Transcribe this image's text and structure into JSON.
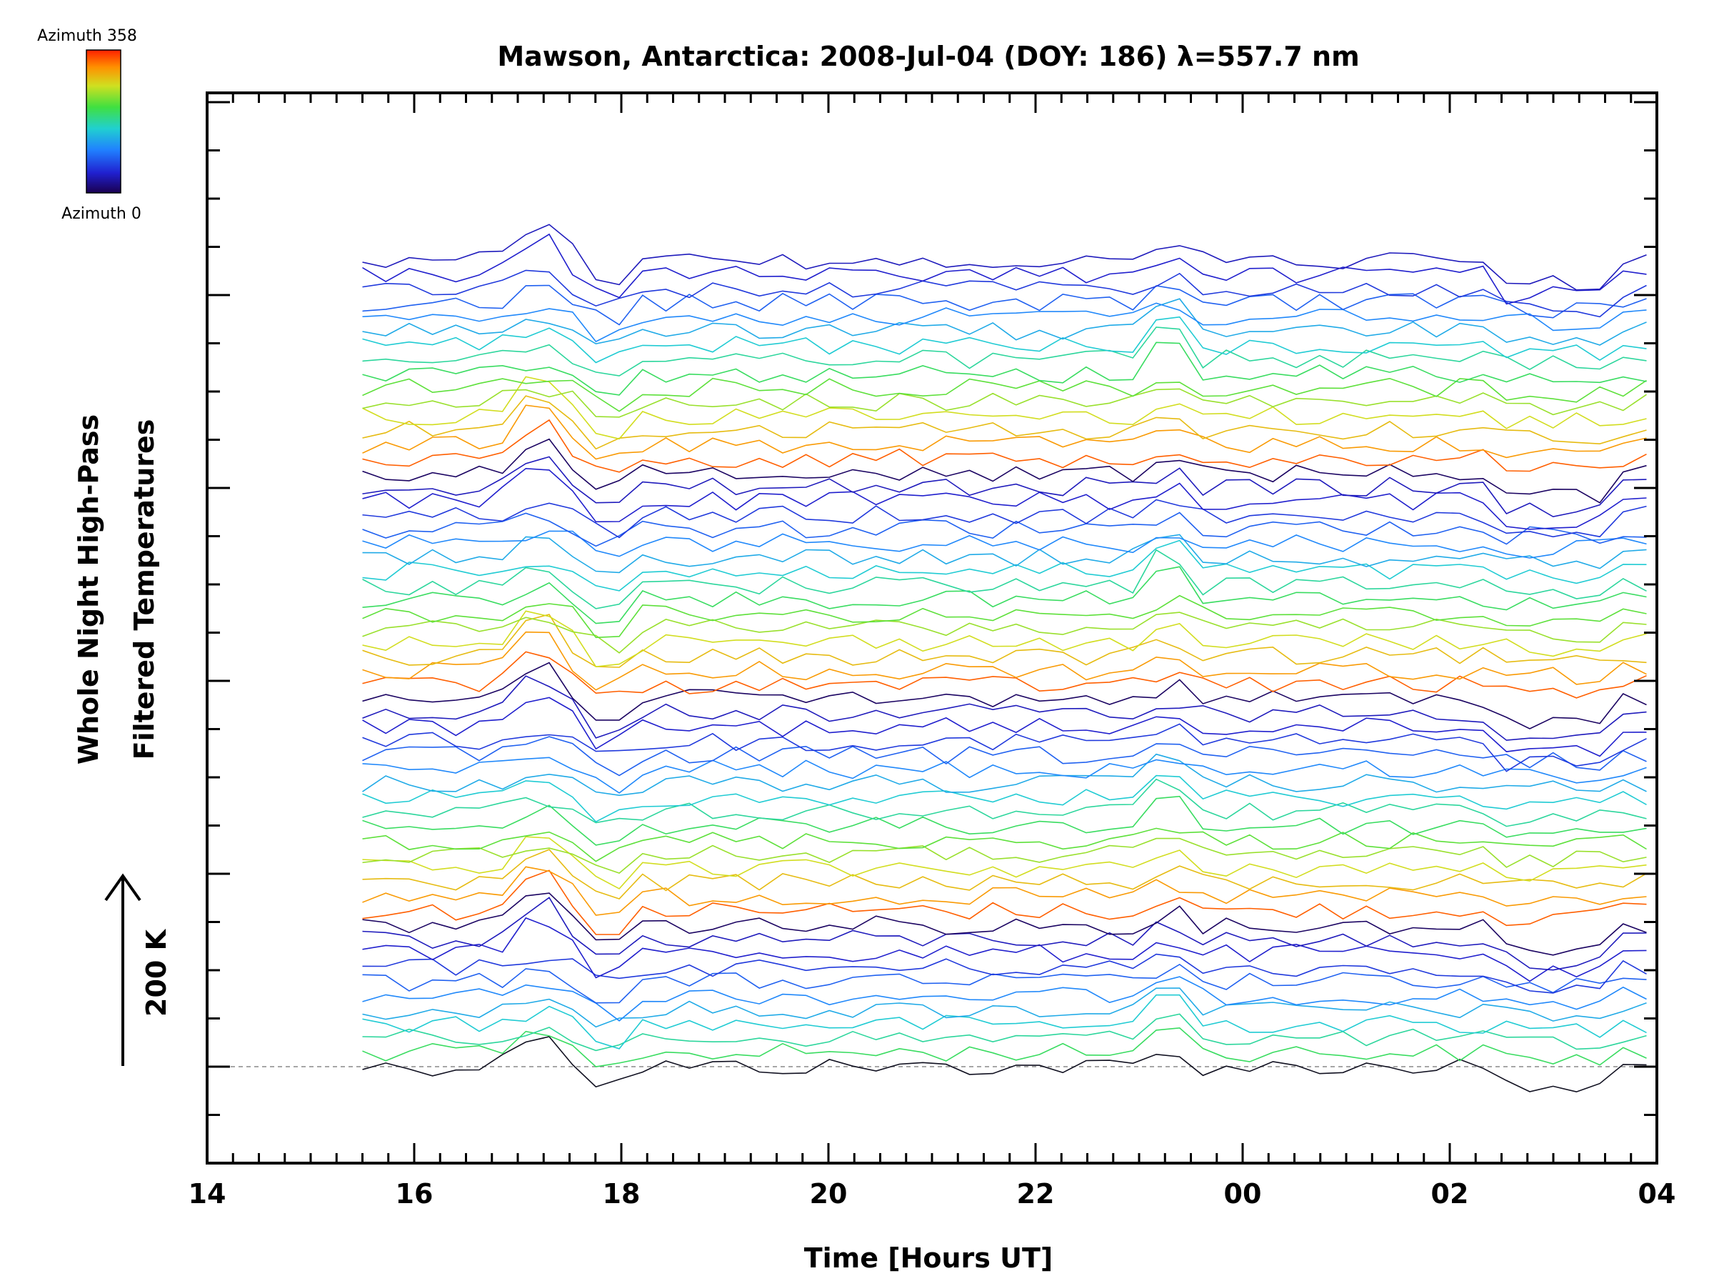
{
  "chart_data": {
    "type": "line",
    "title": "Mawson, Antarctica: 2008-Jul-04 (DOY: 186) λ=557.7 nm",
    "xlabel": "Time [Hours UT]",
    "ylabel_line1": "Whole Night High-Pass",
    "ylabel_line2": "Filtered Temperatures",
    "scale_label": "200 K",
    "colorbar": {
      "top_label": "Azimuth 358",
      "bottom_label": "Azimuth 0"
    },
    "x_tick_labels": [
      "14",
      "16",
      "18",
      "20",
      "22",
      "00",
      "02",
      "04"
    ],
    "x_tick_hours": [
      14,
      16,
      18,
      20,
      22,
      24,
      26,
      28
    ],
    "xlim": [
      14,
      28
    ],
    "data_x_range": [
      15.5,
      27.9
    ],
    "n_samples": 56,
    "n_traces": 58,
    "colors": {
      "colorbar_stops": [
        "#1a0050",
        "#2020d0",
        "#2080ff",
        "#20d0d0",
        "#40e040",
        "#d0e020",
        "#ff9000",
        "#ff2000"
      ],
      "baseline": "#888888"
    }
  }
}
